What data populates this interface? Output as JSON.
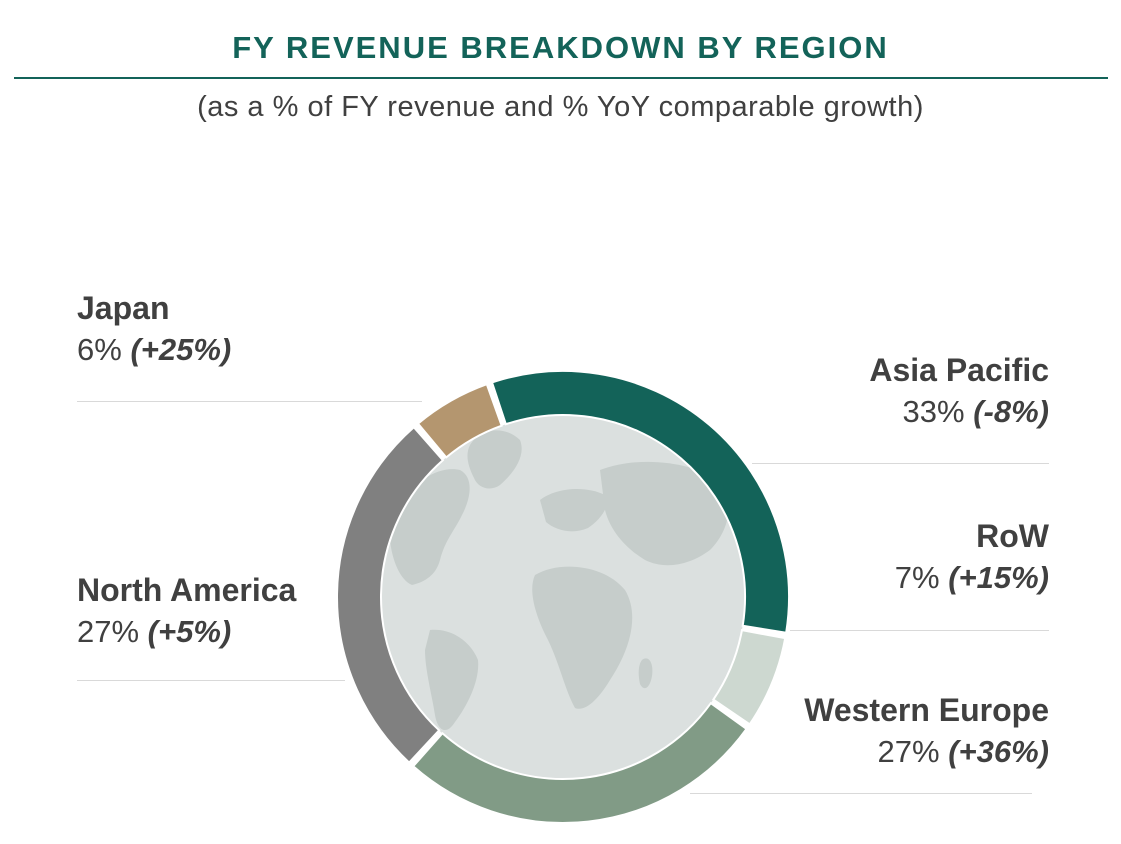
{
  "chart_data": {
    "type": "pie",
    "title": "FY REVENUE BREAKDOWN BY REGION",
    "subtitle": "(as a % of FY revenue and % YoY comparable growth)",
    "slices": [
      {
        "name": "Asia Pacific",
        "value": 33,
        "value_label": "33%",
        "growth_label": "(-8%)",
        "color": "#136359"
      },
      {
        "name": "RoW",
        "value": 7,
        "value_label": "7%",
        "growth_label": "(+15%)",
        "color": "#cdd8d0"
      },
      {
        "name": "Western Europe",
        "value": 27,
        "value_label": "27%",
        "growth_label": "(+36%)",
        "color": "#819b86"
      },
      {
        "name": "North America",
        "value": 27,
        "value_label": "27%",
        "growth_label": "(+5%)",
        "color": "#808080"
      },
      {
        "name": "Japan",
        "value": 6,
        "value_label": "6%",
        "growth_label": "(+25%)",
        "color": "#b4966f"
      }
    ],
    "center_image": "world-map",
    "center_color": "#dbe0df"
  }
}
